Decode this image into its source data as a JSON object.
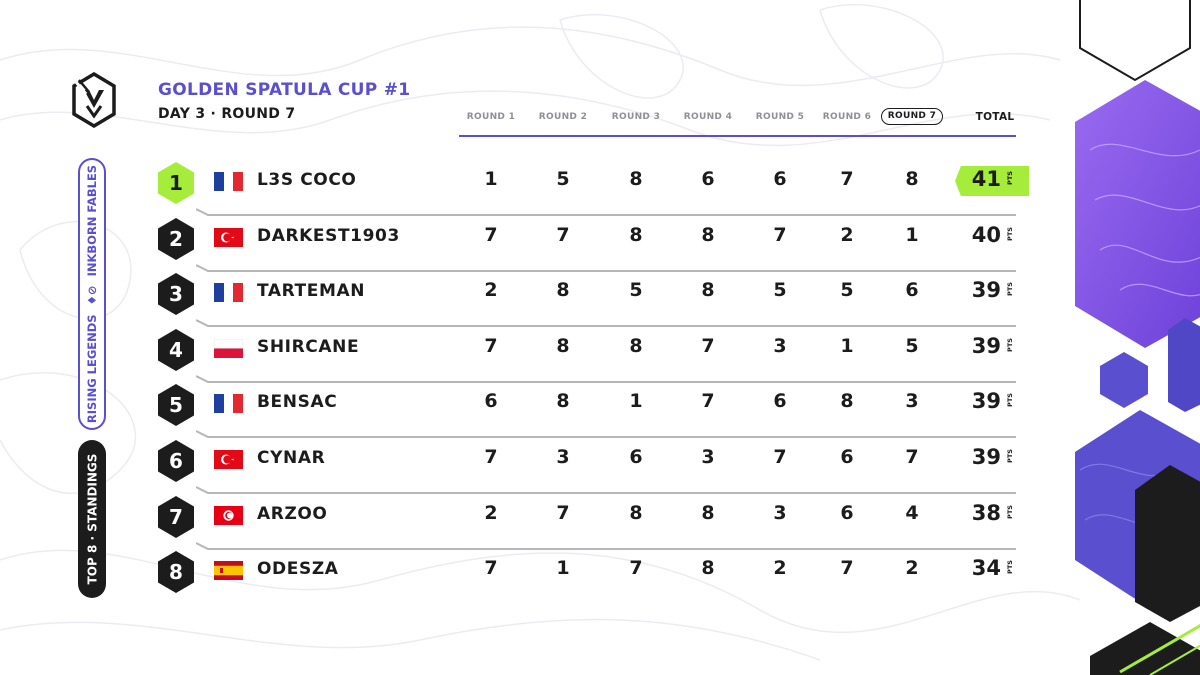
{
  "event": {
    "title": "GOLDEN SPATULA CUP #1",
    "subtitle": "DAY 3 · ROUND 7"
  },
  "side_labels": {
    "legends_left": "RISING LEGENDS",
    "legends_right": "INKBORN FABLES",
    "standings": "TOP 8 · STANDINGS"
  },
  "header": {
    "rounds": [
      "ROUND 1",
      "ROUND 2",
      "ROUND 3",
      "ROUND 4",
      "ROUND 5",
      "ROUND 6",
      "ROUND 7"
    ],
    "current_round_index": 6,
    "total_label": "TOTAL"
  },
  "pts_label": "PTS",
  "standings": [
    {
      "rank": "1",
      "country": "france",
      "name": "L3S COCO",
      "scores": [
        "1",
        "5",
        "8",
        "6",
        "6",
        "7",
        "8"
      ],
      "total": "41"
    },
    {
      "rank": "2",
      "country": "turkey",
      "name": "DARKEST1903",
      "scores": [
        "7",
        "7",
        "8",
        "8",
        "7",
        "2",
        "1"
      ],
      "total": "40"
    },
    {
      "rank": "3",
      "country": "france",
      "name": "TARTEMAN",
      "scores": [
        "2",
        "8",
        "5",
        "8",
        "5",
        "5",
        "6"
      ],
      "total": "39"
    },
    {
      "rank": "4",
      "country": "poland",
      "name": "SHIRCANE",
      "scores": [
        "7",
        "8",
        "8",
        "7",
        "3",
        "1",
        "5"
      ],
      "total": "39"
    },
    {
      "rank": "5",
      "country": "france",
      "name": "BENSAC",
      "scores": [
        "6",
        "8",
        "1",
        "7",
        "6",
        "8",
        "3"
      ],
      "total": "39"
    },
    {
      "rank": "6",
      "country": "turkey",
      "name": "CYNAR",
      "scores": [
        "7",
        "3",
        "6",
        "3",
        "7",
        "6",
        "7"
      ],
      "total": "39"
    },
    {
      "rank": "7",
      "country": "tunisia",
      "name": "ARZOO",
      "scores": [
        "2",
        "7",
        "8",
        "8",
        "3",
        "6",
        "4"
      ],
      "total": "38"
    },
    {
      "rank": "8",
      "country": "spain",
      "name": "ODESZA",
      "scores": [
        "7",
        "1",
        "7",
        "8",
        "2",
        "7",
        "2"
      ],
      "total": "34"
    }
  ],
  "colors": {
    "accent_purple": "#5a4fcf",
    "leader_green": "#a6ec3a",
    "dark": "#1c1c1c"
  }
}
